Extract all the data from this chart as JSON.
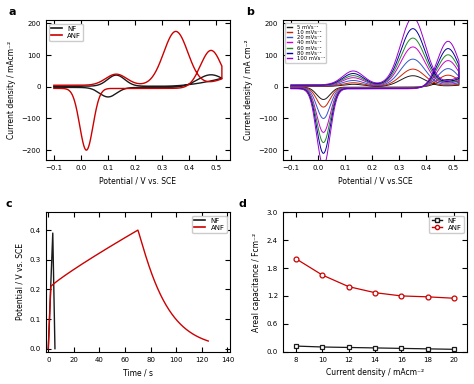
{
  "panel_a": {
    "title": "a",
    "xlabel": "Potential / V vs. SCE",
    "ylabel": "Current density / mAcm⁻²",
    "xlim": [
      -0.13,
      0.55
    ],
    "ylim": [
      -230,
      210
    ],
    "yticks": [
      -200,
      -100,
      0,
      100,
      200
    ],
    "xticks": [
      -0.1,
      0.0,
      0.1,
      0.2,
      0.3,
      0.4,
      0.5
    ],
    "nf_color": "#1a1a1a",
    "anf_color": "#cc0000"
  },
  "panel_b": {
    "title": "b",
    "xlabel": "Potential / V vs.SCE",
    "ylabel": "Current density / mA cm⁻²",
    "xlim": [
      -0.13,
      0.55
    ],
    "ylim": [
      -230,
      210
    ],
    "yticks": [
      -200,
      -100,
      0,
      100,
      200
    ],
    "xticks": [
      -0.1,
      0.0,
      0.1,
      0.2,
      0.3,
      0.4,
      0.5
    ],
    "scan_rates": [
      "5 mVs⁻¹",
      "10 mVs⁻¹",
      "20 mVs⁻¹",
      "40 mVs⁻¹",
      "60 mVs⁻¹",
      "80 mVs⁻¹",
      "100 mVs⁻¹"
    ],
    "scan_colors": [
      "#1a1a1a",
      "#cc2200",
      "#3355cc",
      "#cc00cc",
      "#228822",
      "#000099",
      "#9900cc"
    ],
    "scales": [
      0.2,
      0.32,
      0.5,
      0.72,
      0.88,
      1.05,
      1.25
    ]
  },
  "panel_c": {
    "title": "c",
    "xlabel": "Time / s",
    "ylabel": "Potential / V vs. SCE",
    "xlim": [
      -2,
      142
    ],
    "ylim": [
      -0.01,
      0.46
    ],
    "yticks": [
      0.0,
      0.1,
      0.2,
      0.3,
      0.4
    ],
    "xticks": [
      0,
      20,
      40,
      60,
      80,
      100,
      120,
      140
    ],
    "nf_color": "#1a1a1a",
    "anf_color": "#cc0000"
  },
  "panel_d": {
    "title": "d",
    "xlabel": "Current density / mAcm⁻²",
    "ylabel": "Areal capacitance / Fcm⁻²",
    "xlim": [
      7,
      21
    ],
    "ylim": [
      0,
      3.0
    ],
    "yticks": [
      0.0,
      0.6,
      1.2,
      1.8,
      2.4,
      3.0
    ],
    "xticks": [
      8,
      10,
      12,
      14,
      16,
      18,
      20
    ],
    "nf_color": "#1a1a1a",
    "anf_color": "#cc0000",
    "nf_x": [
      8,
      10,
      12,
      14,
      16,
      18,
      20
    ],
    "nf_y": [
      0.12,
      0.1,
      0.09,
      0.08,
      0.07,
      0.06,
      0.05
    ],
    "anf_x": [
      8,
      10,
      12,
      14,
      16,
      18,
      20
    ],
    "anf_y": [
      2.0,
      1.65,
      1.4,
      1.27,
      1.2,
      1.18,
      1.15
    ]
  }
}
